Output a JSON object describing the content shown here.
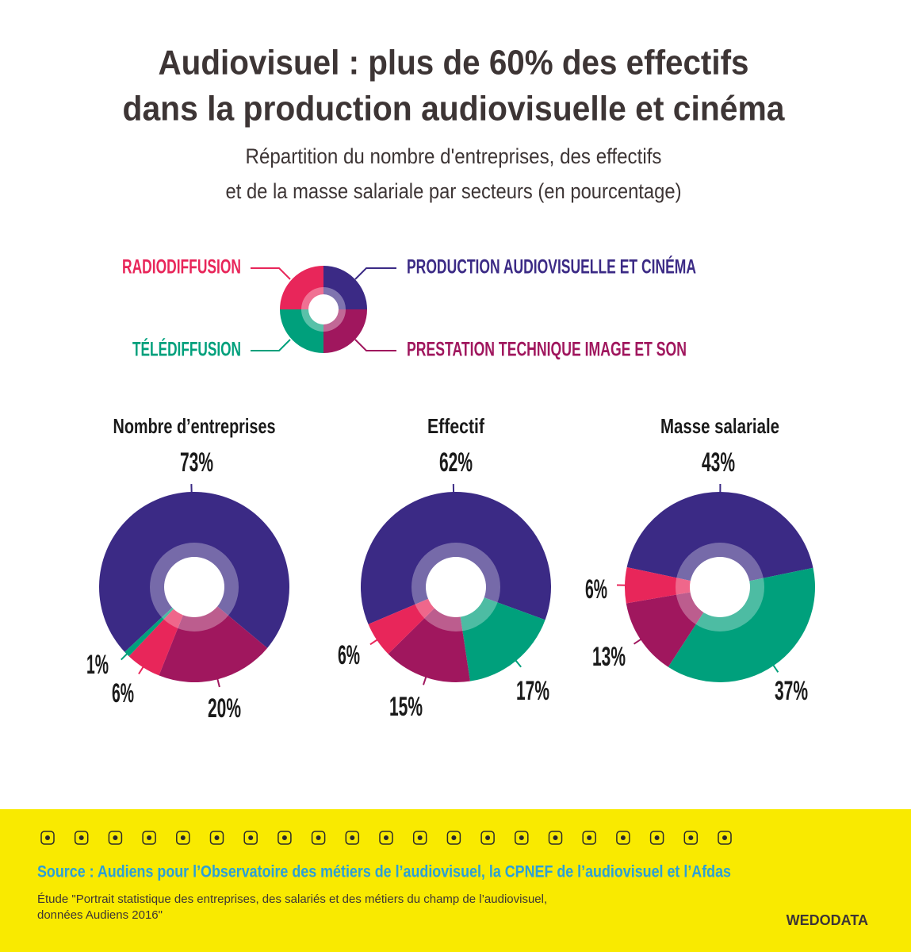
{
  "title": [
    "Audiovisuel : plus de 60% des effectifs",
    "dans la production audiovisuelle et cinéma"
  ],
  "subtitle": [
    "Répartition du nombre d'entreprises, des effectifs",
    "et de la masse salariale par secteurs (en pourcentage)"
  ],
  "legend": {
    "items": [
      {
        "name": "PRODUCTION AUDIOVISUELLE ET CINÉMA",
        "color": "#3b2a85"
      },
      {
        "name": "PRESTATION TECHNIQUE IMAGE ET SON",
        "color": "#a0175e"
      },
      {
        "name": "RADIODIFFUSION",
        "color": "#e8265a"
      },
      {
        "name": "TÉLÉDIFFUSION",
        "color": "#00a07c"
      }
    ]
  },
  "chart_data": [
    {
      "type": "pie",
      "title": "Nombre d’entreprises",
      "values": [
        73,
        20,
        6,
        1
      ],
      "value_labels": [
        "73%",
        "20%",
        "6%",
        "1%"
      ]
    },
    {
      "type": "pie",
      "title": "Effectif",
      "values": [
        62,
        15,
        6,
        17
      ],
      "value_labels": [
        "62%",
        "15%",
        "6%",
        "17%"
      ]
    },
    {
      "type": "pie",
      "title": "Masse salariale",
      "values": [
        43,
        13,
        6,
        37
      ],
      "value_labels": [
        "43%",
        "13%",
        "6%",
        "37%"
      ]
    }
  ],
  "source": "Source : Audiens pour l’Observatoire des métiers de l’audiovisuel, la CPNEF de l’audiovisuel et l’Afdas",
  "note": [
    "Étude \"Portrait statistique des entreprises, des salariés et des métiers du champ de l’audiovisuel,",
    "données Audiens 2016\""
  ],
  "brand": "WEDODATA"
}
